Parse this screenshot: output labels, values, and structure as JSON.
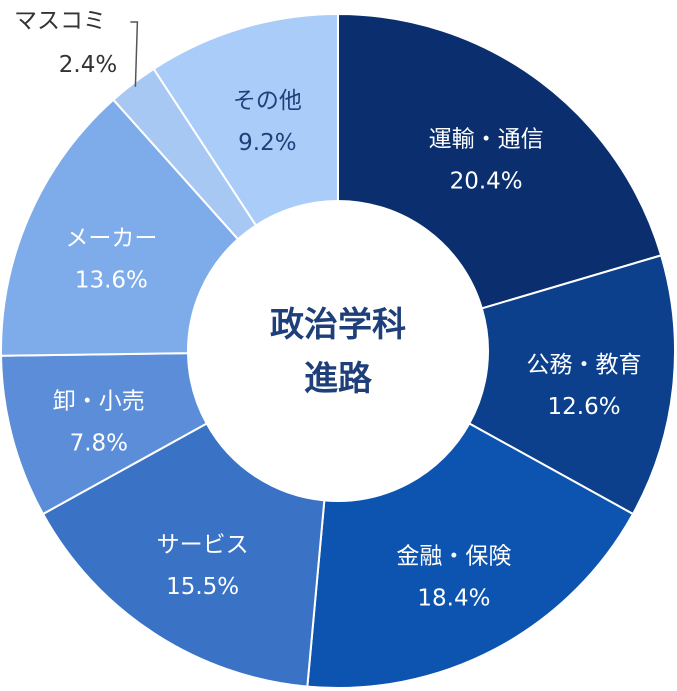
{
  "chart_data": {
    "type": "pie",
    "donut": true,
    "center_label": [
      "政治学科",
      "進路"
    ],
    "slices": [
      {
        "label": "運輸・通信",
        "value": 20.4,
        "value_label": "20.4%",
        "color": "#0b2f6e",
        "text_color": "#ffffff"
      },
      {
        "label": "公務・教育",
        "value": 12.6,
        "value_label": "12.6%",
        "color": "#0c3f8c",
        "text_color": "#ffffff"
      },
      {
        "label": "金融・保険",
        "value": 18.4,
        "value_label": "18.4%",
        "color": "#0d54b0",
        "text_color": "#ffffff"
      },
      {
        "label": "サービス",
        "value": 15.5,
        "value_label": "15.5%",
        "color": "#3a73c6",
        "text_color": "#ffffff"
      },
      {
        "label": "卸・小売",
        "value": 7.8,
        "value_label": "7.8%",
        "color": "#5b8dd8",
        "text_color": "#ffffff"
      },
      {
        "label": "メーカー",
        "value": 13.6,
        "value_label": "13.6%",
        "color": "#7eacea",
        "text_color": "#ffffff"
      },
      {
        "label": "マスコミ",
        "value": 2.4,
        "value_label": "2.4%",
        "color": "#a6c8f2",
        "text_color": "#333333",
        "outside": true
      },
      {
        "label": "その他",
        "value": 9.2,
        "value_label": "9.2%",
        "color": "#a9cdf8",
        "text_color": "#1f3f7a"
      }
    ]
  }
}
